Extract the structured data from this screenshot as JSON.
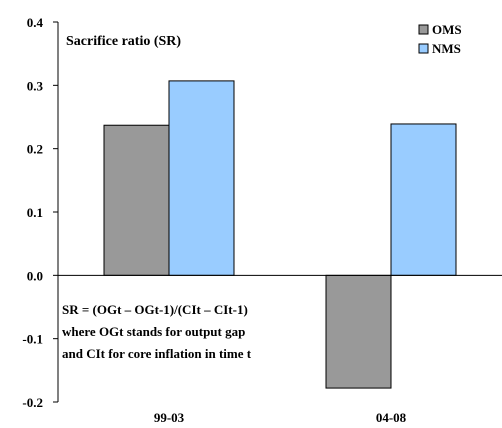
{
  "chart_data": {
    "type": "bar",
    "title": "Sacrifice ratio (SR)",
    "categories": [
      "99-03",
      "04-08"
    ],
    "series": [
      {
        "name": "OMS",
        "values": [
          0.237,
          -0.178
        ],
        "color": "#999999"
      },
      {
        "name": "NMS",
        "values": [
          0.307,
          0.239
        ],
        "color": "#99ccff"
      }
    ],
    "ylim": [
      -0.2,
      0.4
    ],
    "yticks": [
      "0.4",
      "0.3",
      "0.2",
      "0.1",
      "0.0",
      "-0.1",
      "-0.2"
    ],
    "ytick_values": [
      0.4,
      0.3,
      0.2,
      0.1,
      0.0,
      -0.1,
      -0.2
    ],
    "legend_position": "top-right",
    "annotation": [
      "SR = (OGt – OGt-1)/(CIt – CIt-1)",
      "where OGt stands for output gap",
      "and CIt for core inflation in time t"
    ]
  }
}
